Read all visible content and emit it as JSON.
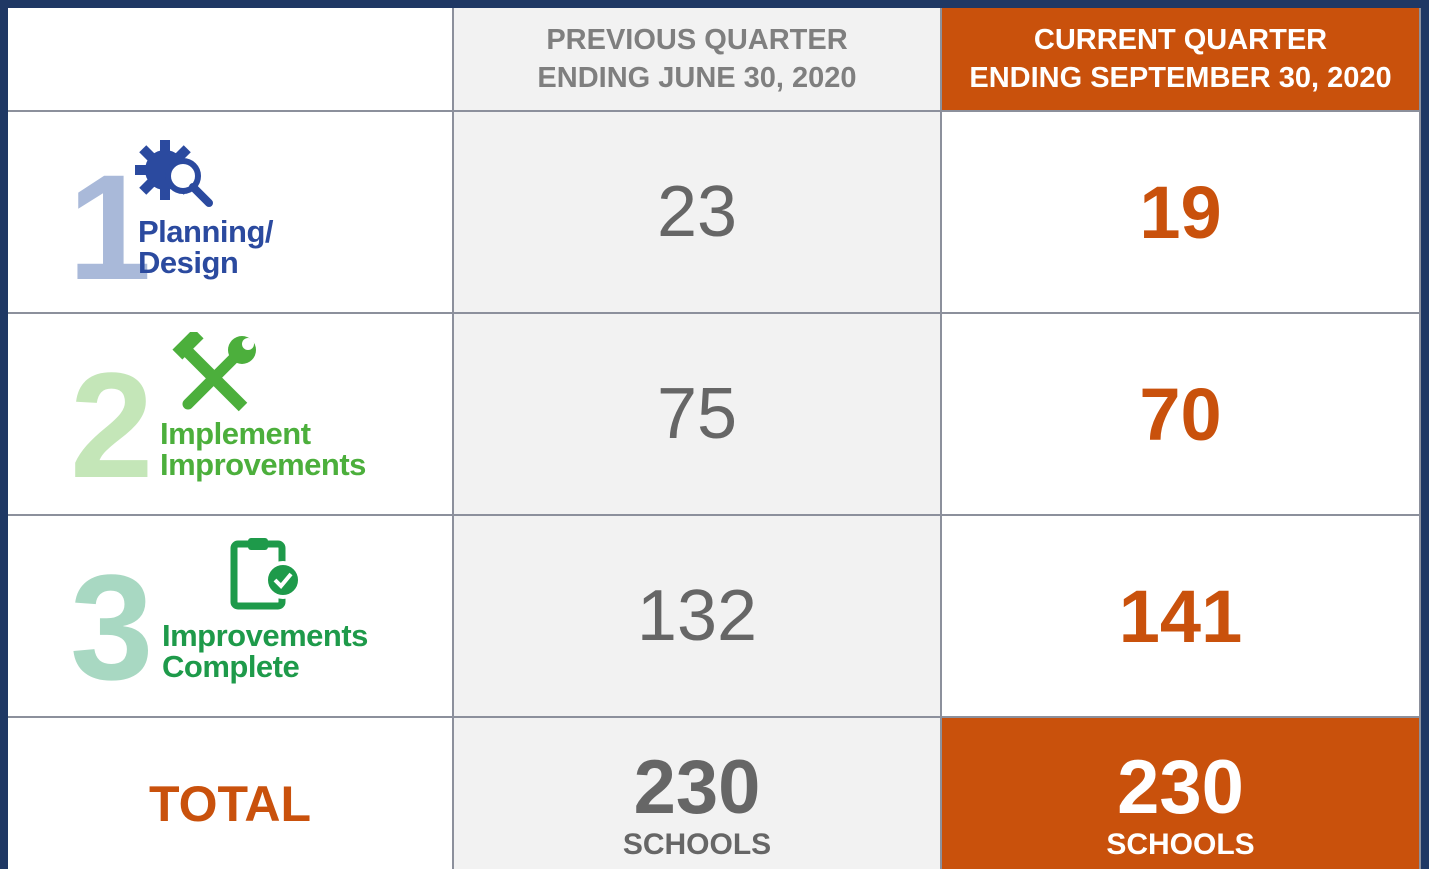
{
  "table": {
    "header": {
      "previous": [
        "PREVIOUS QUARTER",
        "ENDING JUNE 30, 2020"
      ],
      "current": [
        "CURRENT QUARTER",
        "ENDING SEPTEMBER 30, 2020"
      ]
    },
    "rows": [
      {
        "number": 1,
        "label": [
          "Planning/",
          "Design"
        ],
        "previous": 23,
        "current": 19
      },
      {
        "number": 2,
        "label": [
          "Implement",
          "Improvements"
        ],
        "previous": 75,
        "current": 70
      },
      {
        "number": 3,
        "label": [
          "Improvements",
          "Complete"
        ],
        "previous": 132,
        "current": 141
      }
    ],
    "total": {
      "label": "TOTAL",
      "previous": 230,
      "current": 230,
      "unit": "SCHOOLS"
    }
  }
}
